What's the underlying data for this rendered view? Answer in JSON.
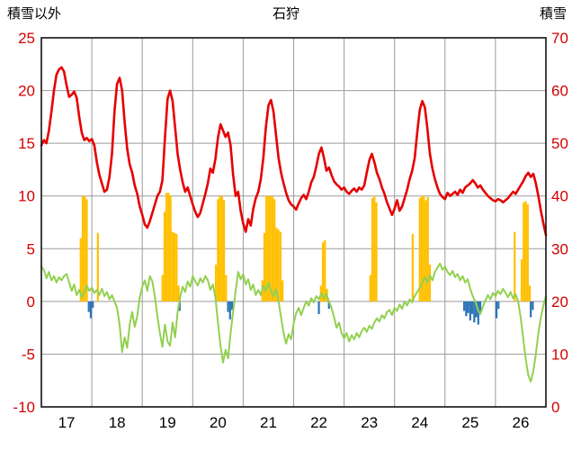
{
  "chart_data": {
    "type": "line",
    "title": "石狩",
    "left_axis": {
      "label": "積雪以外",
      "min": -10,
      "max": 25,
      "ticks": [
        25,
        20,
        15,
        10,
        5,
        0,
        -5,
        -10
      ],
      "tick_color": "#d40000"
    },
    "right_axis": {
      "label": "積雪",
      "min": 0,
      "max": 70,
      "ticks": [
        70,
        60,
        50,
        40,
        30,
        20,
        10,
        0
      ],
      "tick_color": "#d40000"
    },
    "x_axis": {
      "min": 16.5,
      "max": 26.5,
      "labels": [
        "17",
        "18",
        "19",
        "20",
        "21",
        "22",
        "23",
        "24",
        "25",
        "26"
      ],
      "label_color": "#000000"
    },
    "grid": {
      "color": "#9b9b9b",
      "border_color": "#111111"
    },
    "series": [
      {
        "name": "snow-depth-bars",
        "type": "bar",
        "color": "#ffc000",
        "bar_width": 0.04,
        "points": [
          [
            17.28,
            6.0
          ],
          [
            17.32,
            10.0
          ],
          [
            17.36,
            10.0
          ],
          [
            17.4,
            9.7
          ],
          [
            17.62,
            6.5
          ],
          [
            18.9,
            2.5
          ],
          [
            18.94,
            8.5
          ],
          [
            18.98,
            10.3
          ],
          [
            19.02,
            10.3
          ],
          [
            19.06,
            10.0
          ],
          [
            19.1,
            6.6
          ],
          [
            19.14,
            6.5
          ],
          [
            19.18,
            6.4
          ],
          [
            19.22,
            1.5
          ],
          [
            19.96,
            3.5
          ],
          [
            20.0,
            9.7
          ],
          [
            20.04,
            10.0
          ],
          [
            20.08,
            10.0
          ],
          [
            20.12,
            9.6
          ],
          [
            20.16,
            2.5
          ],
          [
            20.88,
            2.0
          ],
          [
            20.92,
            6.5
          ],
          [
            20.96,
            10.0
          ],
          [
            21.0,
            10.0
          ],
          [
            21.04,
            10.0
          ],
          [
            21.08,
            10.0
          ],
          [
            21.12,
            9.7
          ],
          [
            21.16,
            7.0
          ],
          [
            21.2,
            6.8
          ],
          [
            21.24,
            6.6
          ],
          [
            21.28,
            2.0
          ],
          [
            22.04,
            1.5
          ],
          [
            22.08,
            5.6
          ],
          [
            22.12,
            5.8
          ],
          [
            22.16,
            1.2
          ],
          [
            23.02,
            2.5
          ],
          [
            23.06,
            9.8
          ],
          [
            23.1,
            10.0
          ],
          [
            23.14,
            9.4
          ],
          [
            23.86,
            6.4
          ],
          [
            24.0,
            9.8
          ],
          [
            24.04,
            10.0
          ],
          [
            24.08,
            10.0
          ],
          [
            24.12,
            9.6
          ],
          [
            24.16,
            9.9
          ],
          [
            24.2,
            3.5
          ],
          [
            25.88,
            6.6
          ],
          [
            26.02,
            4.0
          ],
          [
            26.06,
            9.4
          ],
          [
            26.1,
            9.5
          ],
          [
            26.14,
            9.2
          ],
          [
            26.18,
            1.5
          ]
        ]
      },
      {
        "name": "negative-bars",
        "type": "bar",
        "color": "#2e75b6",
        "bar_width": 0.04,
        "points": [
          [
            17.44,
            -1.0
          ],
          [
            17.48,
            -1.6
          ],
          [
            17.52,
            -0.6
          ],
          [
            19.24,
            -0.9
          ],
          [
            20.2,
            -1.0
          ],
          [
            20.24,
            -1.7
          ],
          [
            20.28,
            -0.8
          ],
          [
            22.0,
            -1.2
          ],
          [
            22.2,
            -0.7
          ],
          [
            24.88,
            -0.9
          ],
          [
            24.92,
            -1.4
          ],
          [
            24.96,
            -1.1
          ],
          [
            25.0,
            -1.8
          ],
          [
            25.04,
            -1.2
          ],
          [
            25.08,
            -2.0
          ],
          [
            25.12,
            -1.5
          ],
          [
            25.16,
            -2.2
          ],
          [
            25.2,
            -1.0
          ],
          [
            25.52,
            -1.6
          ],
          [
            25.56,
            -0.7
          ],
          [
            26.2,
            -1.5
          ],
          [
            26.24,
            -0.8
          ]
        ]
      },
      {
        "name": "green-line",
        "type": "line",
        "color": "#92d050",
        "width": 2,
        "x_start": 16.5,
        "x_step": 0.05,
        "values": [
          3.3,
          3.0,
          2.2,
          2.8,
          2.0,
          2.4,
          1.8,
          2.3,
          2.0,
          2.4,
          2.6,
          1.8,
          1.0,
          1.6,
          0.6,
          1.1,
          0.4,
          0.9,
          1.5,
          1.0,
          1.3,
          0.8,
          1.1,
          0.6,
          1.2,
          0.5,
          0.9,
          0.2,
          0.6,
          0.0,
          -0.6,
          -2.2,
          -4.8,
          -3.4,
          -4.4,
          -2.2,
          -1.0,
          -2.4,
          -1.4,
          0.4,
          1.4,
          2.0,
          1.0,
          2.4,
          1.9,
          0.5,
          -1.4,
          -3.0,
          -4.3,
          -2.2,
          -3.8,
          -4.2,
          -2.0,
          -3.4,
          -1.0,
          0.4,
          1.4,
          0.9,
          1.9,
          1.4,
          2.4,
          1.9,
          1.5,
          2.2,
          1.8,
          2.4,
          2.0,
          1.1,
          1.6,
          0.4,
          -2.0,
          -4.2,
          -5.8,
          -4.6,
          -5.4,
          -3.0,
          -1.0,
          1.0,
          2.8,
          2.1,
          2.6,
          1.6,
          2.1,
          1.1,
          1.6,
          0.6,
          1.1,
          0.6,
          1.5,
          1.0,
          1.8,
          1.0,
          0.5,
          1.2,
          0.0,
          -1.5,
          -3.0,
          -4.0,
          -3.1,
          -3.6,
          -2.1,
          -1.1,
          -0.6,
          -1.3,
          -0.6,
          0.0,
          -0.4,
          0.3,
          -0.1,
          0.5,
          0.2,
          0.8,
          0.3,
          0.7,
          0.0,
          -0.6,
          -1.5,
          -2.5,
          -2.0,
          -3.0,
          -3.5,
          -3.0,
          -3.8,
          -3.2,
          -3.6,
          -3.0,
          -3.4,
          -2.8,
          -2.5,
          -2.9,
          -2.3,
          -2.6,
          -2.0,
          -1.6,
          -1.9,
          -1.3,
          -1.6,
          -1.0,
          -0.8,
          -1.3,
          -0.6,
          -0.9,
          -0.3,
          -0.7,
          0.0,
          -0.4,
          0.2,
          -0.1,
          0.5,
          0.9,
          1.3,
          1.8,
          2.3,
          1.8,
          2.5,
          2.0,
          2.8,
          3.2,
          3.6,
          3.0,
          3.3,
          2.8,
          2.5,
          2.9,
          2.3,
          2.6,
          2.0,
          2.4,
          1.8,
          2.1,
          1.2,
          0.5,
          0.0,
          -0.8,
          -1.2,
          -0.5,
          0.1,
          0.6,
          0.2,
          0.8,
          0.5,
          1.0,
          0.7,
          1.2,
          0.8,
          0.4,
          0.9,
          0.3,
          0.7,
          0.0,
          -1.5,
          -3.5,
          -5.5,
          -7.0,
          -7.6,
          -6.6,
          -5.0,
          -3.0,
          -1.5,
          -0.4,
          0.5
        ]
      },
      {
        "name": "red-line",
        "type": "line",
        "color": "#e60000",
        "width": 2.6,
        "x_start": 16.5,
        "x_step": 0.05,
        "values": [
          14.8,
          15.3,
          15.0,
          16.2,
          18.0,
          20.0,
          21.5,
          22.0,
          22.2,
          21.8,
          20.5,
          19.4,
          19.6,
          19.9,
          19.3,
          17.5,
          16.0,
          15.3,
          15.5,
          15.2,
          15.4,
          14.8,
          13.2,
          12.0,
          11.2,
          10.4,
          10.6,
          11.8,
          14.0,
          18.0,
          20.6,
          21.2,
          20.0,
          17.0,
          14.5,
          13.0,
          12.2,
          11.0,
          10.2,
          9.0,
          8.2,
          7.3,
          7.0,
          7.6,
          8.4,
          9.2,
          10.0,
          10.4,
          11.5,
          15.5,
          19.2,
          20.0,
          19.0,
          16.5,
          14.0,
          12.5,
          11.3,
          10.4,
          10.8,
          10.0,
          9.2,
          8.5,
          8.0,
          8.4,
          9.3,
          10.2,
          11.2,
          12.6,
          12.2,
          13.5,
          15.5,
          16.8,
          16.2,
          15.6,
          16.0,
          14.8,
          12.0,
          10.0,
          10.4,
          8.6,
          7.4,
          6.6,
          7.8,
          7.2,
          8.8,
          9.8,
          10.4,
          11.6,
          13.6,
          16.5,
          18.6,
          19.1,
          18.0,
          15.8,
          13.6,
          12.2,
          11.2,
          10.3,
          9.6,
          9.2,
          9.0,
          8.7,
          9.3,
          9.8,
          10.1,
          9.7,
          10.4,
          11.3,
          11.8,
          12.8,
          14.0,
          14.6,
          13.6,
          12.4,
          12.7,
          12.0,
          11.4,
          11.1,
          10.9,
          10.6,
          10.8,
          10.4,
          10.2,
          10.5,
          10.7,
          10.4,
          10.8,
          10.6,
          11.0,
          12.2,
          13.4,
          14.0,
          13.2,
          12.2,
          11.6,
          10.8,
          10.2,
          9.4,
          8.8,
          8.2,
          8.8,
          9.6,
          8.6,
          9.0,
          9.8,
          10.6,
          11.6,
          12.4,
          13.6,
          16.0,
          18.2,
          19.0,
          18.4,
          16.4,
          14.0,
          12.6,
          11.6,
          10.8,
          10.2,
          9.9,
          9.7,
          10.3,
          10.0,
          10.2,
          10.4,
          10.1,
          10.6,
          10.3,
          10.8,
          11.0,
          11.2,
          11.5,
          11.2,
          10.8,
          11.0,
          10.6,
          10.3,
          10.0,
          9.8,
          9.6,
          9.5,
          9.7,
          9.6,
          9.4,
          9.6,
          9.8,
          10.1,
          10.4,
          10.2,
          10.6,
          11.0,
          11.4,
          11.9,
          12.2,
          11.8,
          12.1,
          11.2,
          10.0,
          8.6,
          7.4,
          6.3
        ]
      }
    ]
  }
}
